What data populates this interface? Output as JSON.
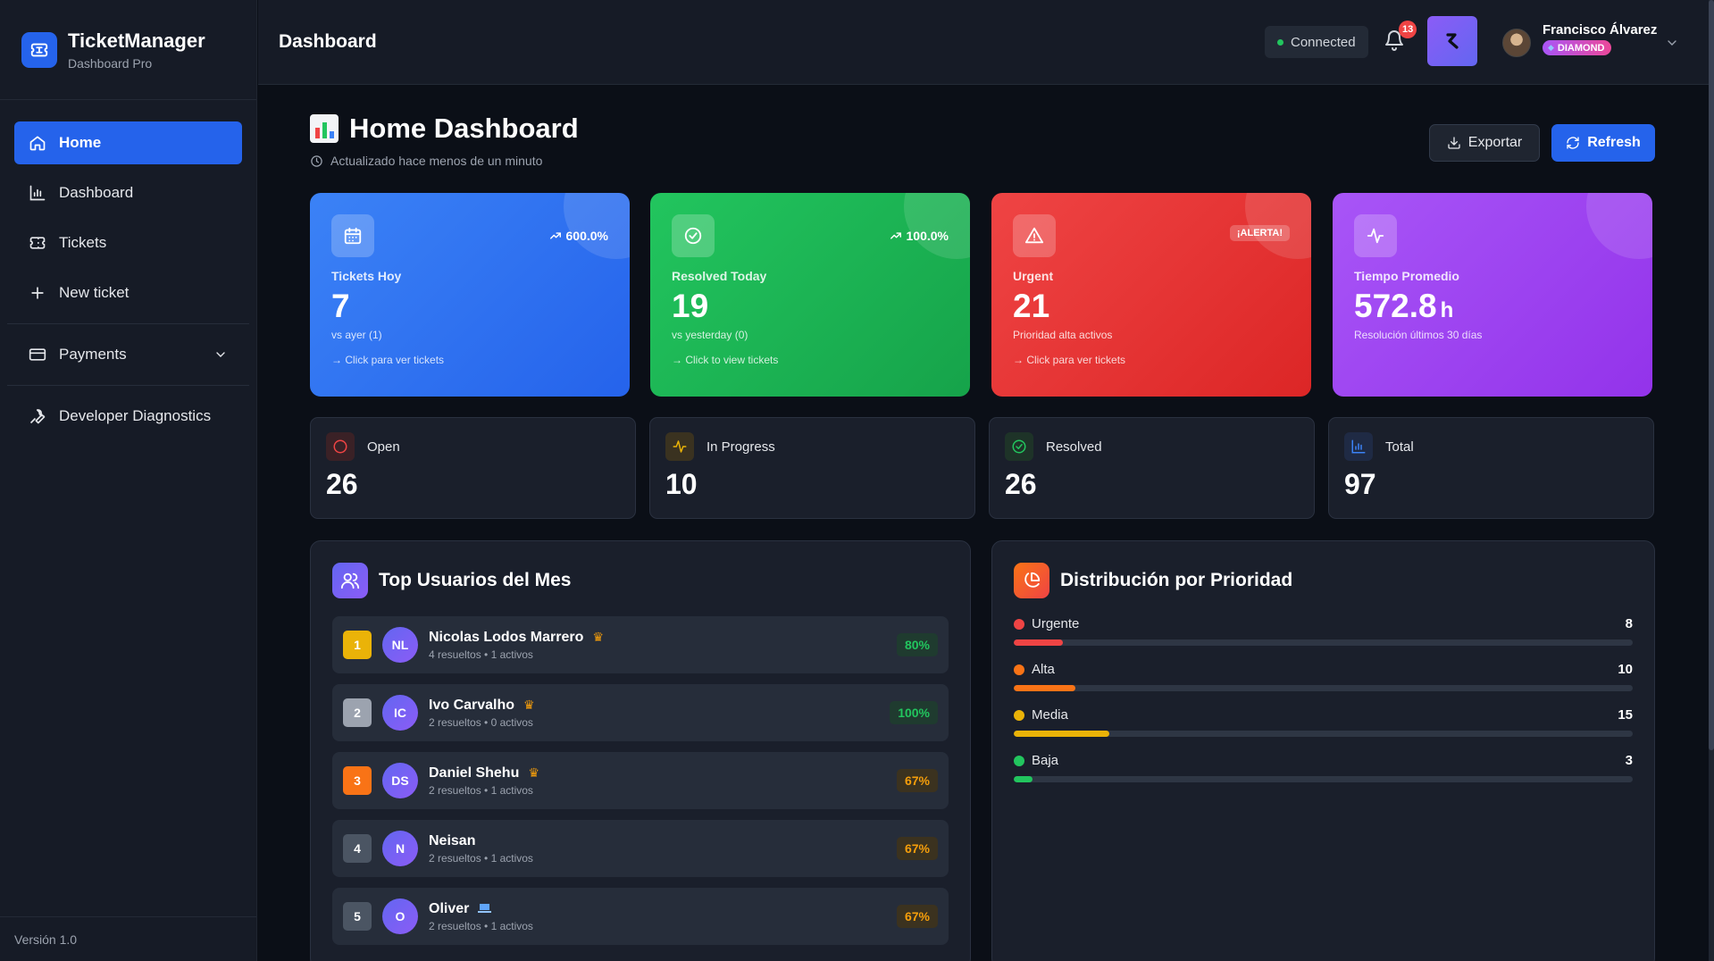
{
  "sidebar": {
    "brand_title": "TicketManager",
    "brand_sub": "Dashboard Pro",
    "items": [
      {
        "label": "Home",
        "icon": "home-icon"
      },
      {
        "label": "Dashboard",
        "icon": "bar-chart-icon"
      },
      {
        "label": "Tickets",
        "icon": "ticket-icon"
      },
      {
        "label": "New ticket",
        "icon": "plus-icon"
      },
      {
        "label": "Payments",
        "icon": "credit-card-icon"
      },
      {
        "label": "Developer Diagnostics",
        "icon": "wrench-icon"
      }
    ],
    "version": "Versión 1.0"
  },
  "topbar": {
    "title": "Dashboard",
    "connection": "Connected",
    "notifications": "13",
    "user_name": "Francisco Álvarez",
    "user_tier": "DIAMOND"
  },
  "page": {
    "title": "Home Dashboard",
    "updated": "Actualizado hace menos de un minuto",
    "export_label": "Exportar",
    "refresh_label": "Refresh"
  },
  "kpis": [
    {
      "label": "Tickets Hoy",
      "value": "7",
      "trend": "600.0%",
      "sub": "vs ayer (1)",
      "link": "→ Click para ver tickets",
      "color": "#3b82f6"
    },
    {
      "label": "Resolved Today",
      "value": "19",
      "trend": "100.0%",
      "sub": "vs yesterday (0)",
      "link": "→ Click to view tickets",
      "color": "#22c55e"
    },
    {
      "label": "Urgent",
      "value": "21",
      "alert": "¡ALERTA!",
      "sub": "Prioridad alta activos",
      "link": "→ Click para ver tickets",
      "color": "#ef4444"
    },
    {
      "label": "Tiempo Promedio",
      "value": "572.8",
      "unit": "h",
      "sub": "Resolución últimos 30 días",
      "color": "#a855f7"
    }
  ],
  "stats": [
    {
      "label": "Open",
      "value": "26"
    },
    {
      "label": "In Progress",
      "value": "10"
    },
    {
      "label": "Resolved",
      "value": "26"
    },
    {
      "label": "Total",
      "value": "97"
    }
  ],
  "top_users": {
    "title": "Top Usuarios del Mes",
    "rows": [
      {
        "rank": "1",
        "initials": "NL",
        "name": "Nicolas Lodos Marrero",
        "meta": "4 resueltos • 1 activos",
        "pct": "80%"
      },
      {
        "rank": "2",
        "initials": "IC",
        "name": "Ivo Carvalho",
        "meta": "2 resueltos • 0 activos",
        "pct": "100%"
      },
      {
        "rank": "3",
        "initials": "DS",
        "name": "Daniel Shehu",
        "meta": "2 resueltos • 1 activos",
        "pct": "67%"
      },
      {
        "rank": "4",
        "initials": "N",
        "name": "Neisan",
        "meta": "2 resueltos • 1 activos",
        "pct": "67%"
      },
      {
        "rank": "5",
        "initials": "O",
        "name": "Oliver",
        "meta": "2 resueltos • 1 activos",
        "pct": "67%"
      }
    ]
  },
  "priority": {
    "title": "Distribución por Prioridad",
    "rows": [
      {
        "label": "Urgente",
        "count": "8",
        "fraction": 0.08,
        "color": "#ef4444"
      },
      {
        "label": "Alta",
        "count": "10",
        "fraction": 0.1,
        "color": "#f97316"
      },
      {
        "label": "Media",
        "count": "15",
        "fraction": 0.155,
        "color": "#eab308"
      },
      {
        "label": "Baja",
        "count": "3",
        "fraction": 0.03,
        "color": "#22c55e"
      }
    ]
  }
}
